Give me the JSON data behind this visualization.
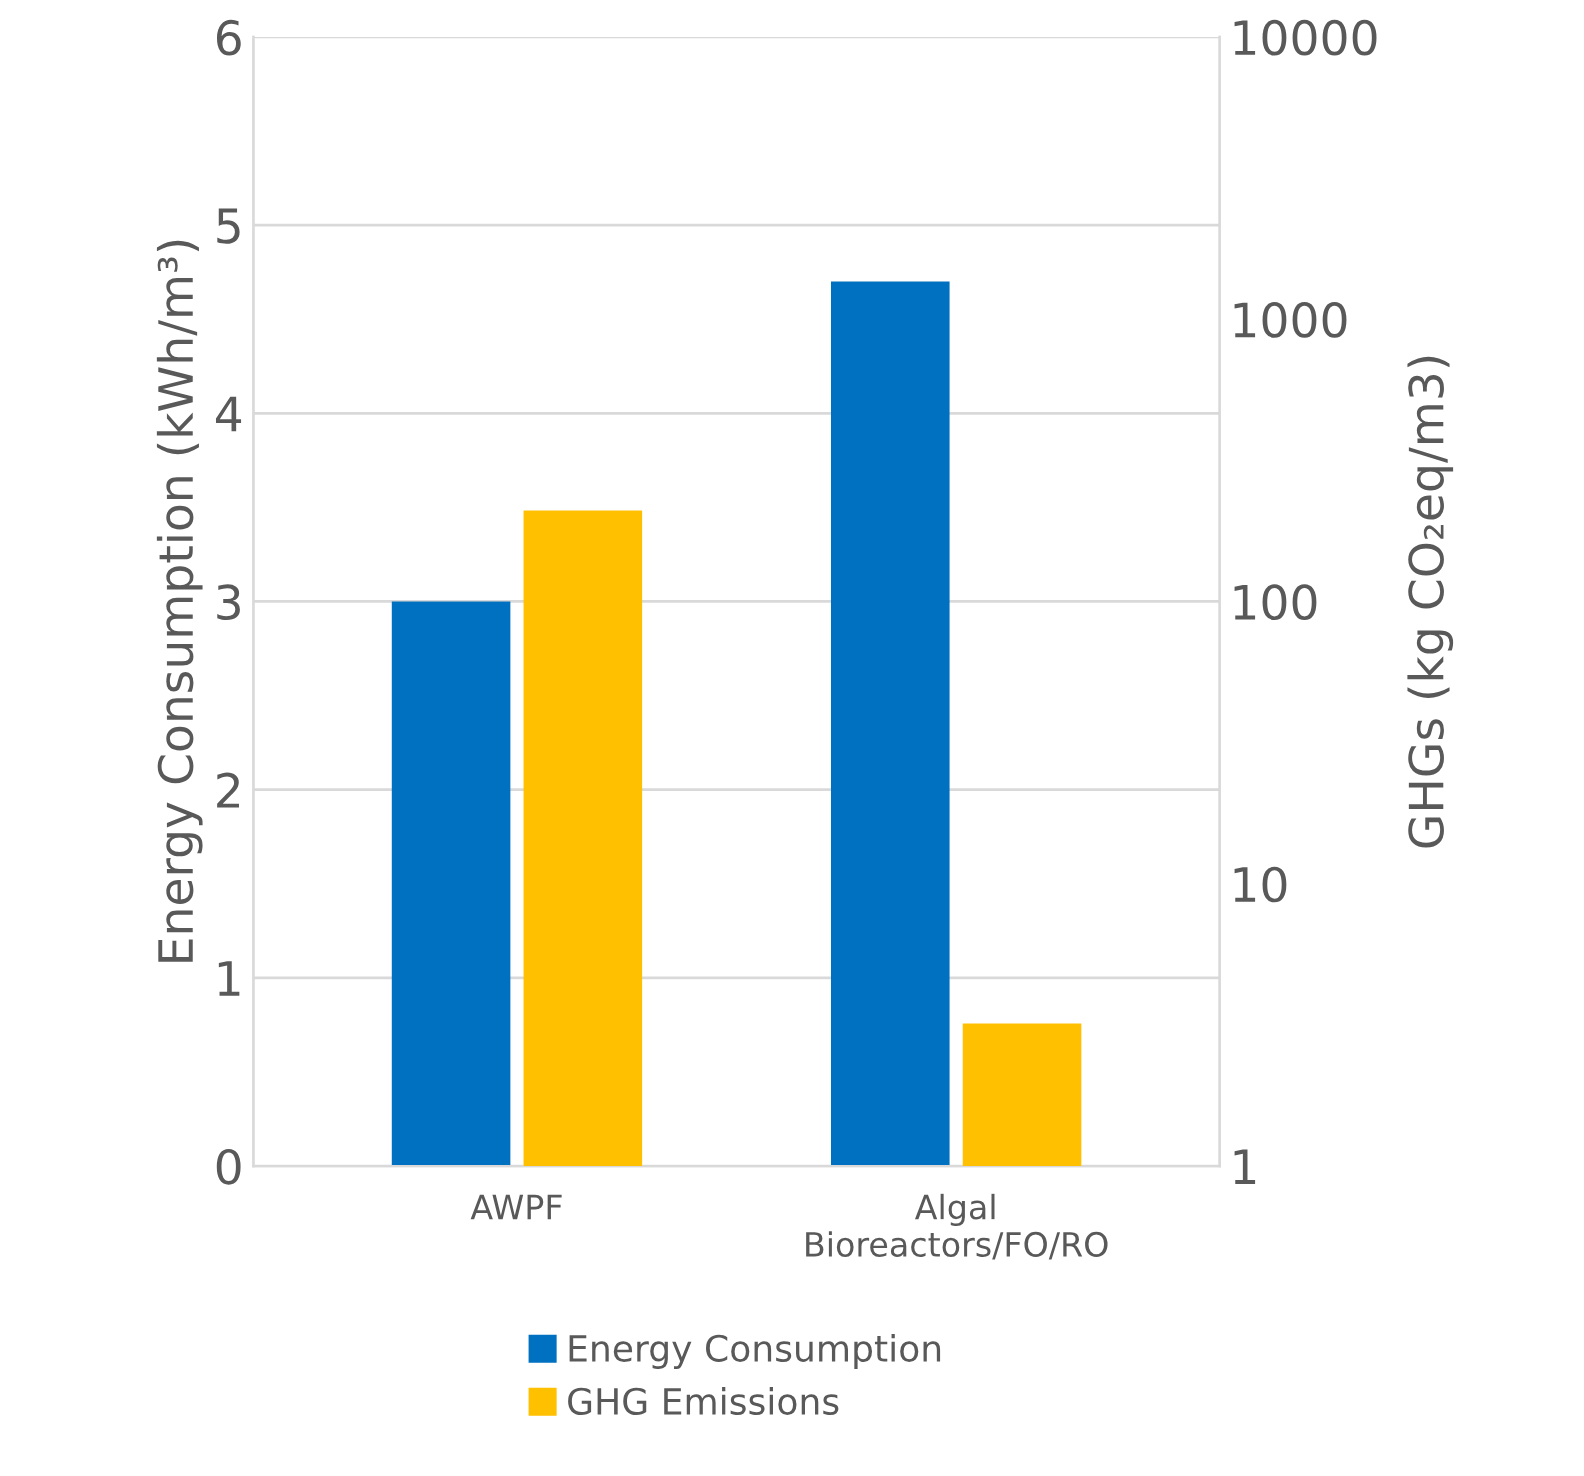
{
  "chart_data": {
    "type": "bar",
    "categories": [
      "AWPF",
      "Algal\nBioreactors/FO/RO"
    ],
    "series": [
      {
        "name": "Energy Consumption",
        "color": "#0070c0",
        "values": [
          3.0,
          4.7
        ]
      },
      {
        "name": "GHG Emissions",
        "color": "#ffc000",
        "values": [
          210,
          3.2
        ],
        "axis": "y2"
      }
    ],
    "ylabel": "Energy Consumption (kWh/m³)",
    "y2label": "GHGs (kg CO₂eq/m3)",
    "ylim": [
      0,
      6
    ],
    "yticks": [
      0,
      1,
      2,
      3,
      4,
      5,
      6
    ],
    "y2lim": [
      1,
      10000
    ],
    "y2ticks": [
      1,
      10,
      100,
      1000,
      10000
    ],
    "log": "y2",
    "grid": "y",
    "legend": "bottom"
  }
}
